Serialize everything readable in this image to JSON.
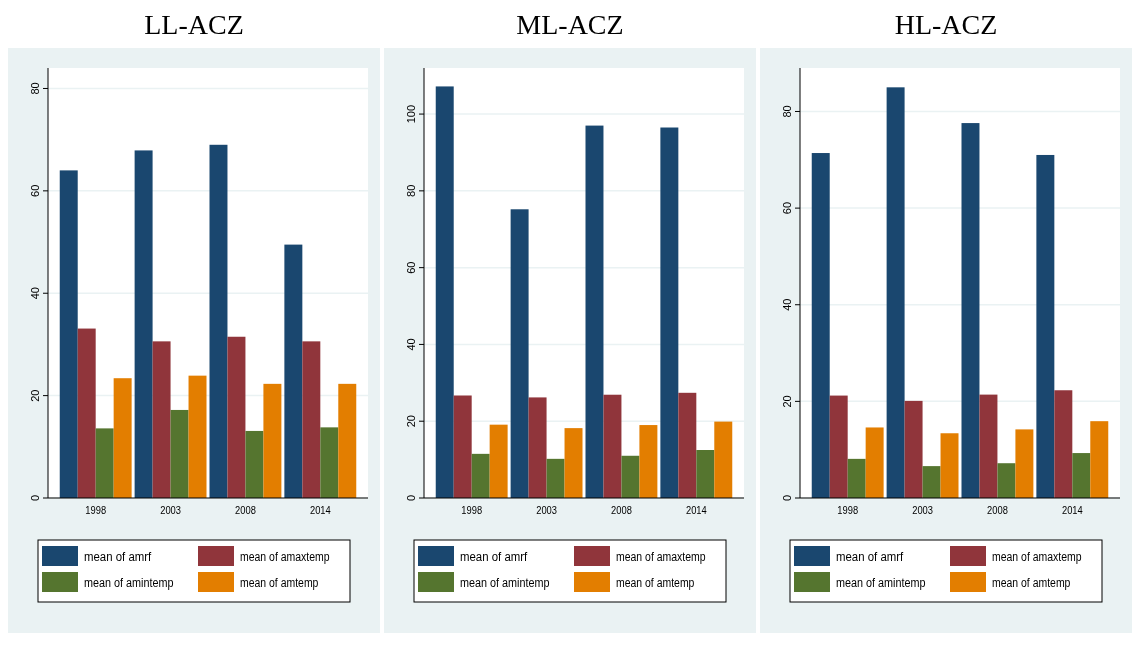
{
  "chart_data": [
    {
      "type": "bar",
      "title": "LL-ACZ",
      "categories": [
        "1998",
        "2003",
        "2008",
        "2014"
      ],
      "ylim": [
        0,
        84
      ],
      "yticks": [
        0,
        20,
        40,
        60,
        80
      ],
      "grid": "y",
      "legend": "bottom",
      "series": [
        {
          "name": "mean of amrf",
          "color": "#1a476f",
          "values": [
            64.0,
            67.9,
            69.0,
            49.5
          ]
        },
        {
          "name": "mean of amaxtemp",
          "color": "#90353b",
          "values": [
            33.1,
            30.6,
            31.5,
            30.6
          ]
        },
        {
          "name": "mean of amintemp",
          "color": "#55752f",
          "values": [
            13.6,
            17.2,
            13.1,
            13.8
          ]
        },
        {
          "name": "mean of amtemp",
          "color": "#e37e00",
          "values": [
            23.4,
            23.9,
            22.3,
            22.3
          ]
        }
      ]
    },
    {
      "type": "bar",
      "title": "ML-ACZ",
      "categories": [
        "1998",
        "2003",
        "2008",
        "2014"
      ],
      "ylim": [
        0,
        112
      ],
      "yticks": [
        0,
        20,
        40,
        60,
        80,
        100
      ],
      "grid": "y",
      "legend": "bottom",
      "series": [
        {
          "name": "mean of amrf",
          "color": "#1a476f",
          "values": [
            107.2,
            75.2,
            97.0,
            96.5
          ]
        },
        {
          "name": "mean of amaxtemp",
          "color": "#90353b",
          "values": [
            26.7,
            26.2,
            26.9,
            27.4
          ]
        },
        {
          "name": "mean of amintemp",
          "color": "#55752f",
          "values": [
            11.5,
            10.2,
            11.0,
            12.5
          ]
        },
        {
          "name": "mean of amtemp",
          "color": "#e37e00",
          "values": [
            19.1,
            18.2,
            19.0,
            19.9
          ]
        }
      ]
    },
    {
      "type": "bar",
      "title": "HL-ACZ",
      "categories": [
        "1998",
        "2003",
        "2008",
        "2014"
      ],
      "ylim": [
        0,
        89
      ],
      "yticks": [
        0,
        20,
        40,
        60,
        80
      ],
      "grid": "y",
      "legend": "bottom",
      "series": [
        {
          "name": "mean of amrf",
          "color": "#1a476f",
          "values": [
            71.4,
            85.0,
            77.6,
            71.0
          ]
        },
        {
          "name": "mean of amaxtemp",
          "color": "#90353b",
          "values": [
            21.2,
            20.1,
            21.4,
            22.3
          ]
        },
        {
          "name": "mean of amintemp",
          "color": "#55752f",
          "values": [
            8.1,
            6.6,
            7.2,
            9.3
          ]
        },
        {
          "name": "mean of amtemp",
          "color": "#e37e00",
          "values": [
            14.6,
            13.4,
            14.2,
            15.9
          ]
        }
      ]
    }
  ]
}
